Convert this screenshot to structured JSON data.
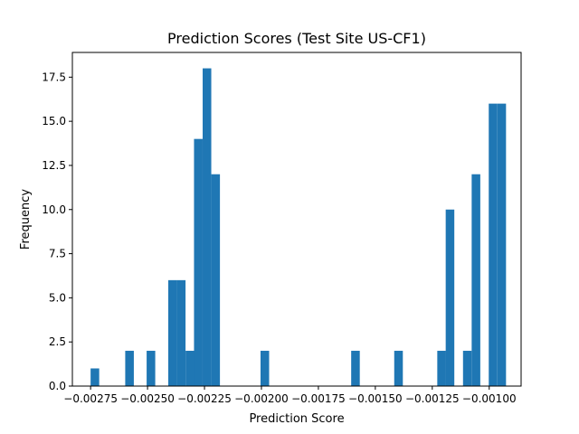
{
  "chart_data": {
    "type": "bar",
    "title": "Prediction Scores (Test Site US-CF1)",
    "xlabel": "Prediction Score",
    "ylabel": "Frequency",
    "xlim": [
      -0.00283,
      -0.00086
    ],
    "ylim": [
      0,
      18.9
    ],
    "bar_color": "#1f77b4",
    "bin_width": 3.78e-05,
    "x_ticks": [
      -0.00275,
      -0.0025,
      -0.00225,
      -0.002,
      -0.00175,
      -0.0015,
      -0.00125,
      -0.001
    ],
    "x_tick_labels": [
      "−0.00275",
      "−0.00250",
      "−0.00225",
      "−0.00200",
      "−0.00175",
      "−0.00150",
      "−0.00125",
      "−0.00100"
    ],
    "y_ticks": [
      0,
      2.5,
      5,
      7.5,
      10,
      12.5,
      15,
      17.5
    ],
    "y_tick_labels": [
      "0.0",
      "2.5",
      "5.0",
      "7.5",
      "10.0",
      "12.5",
      "15.0",
      "17.5"
    ],
    "bins": [
      {
        "x": -0.00275,
        "count": 1
      },
      {
        "x": -0.002598,
        "count": 2
      },
      {
        "x": -0.002504,
        "count": 2
      },
      {
        "x": -0.002409,
        "count": 6
      },
      {
        "x": -0.002371,
        "count": 6
      },
      {
        "x": -0.002333,
        "count": 2
      },
      {
        "x": -0.002296,
        "count": 14
      },
      {
        "x": -0.002258,
        "count": 18
      },
      {
        "x": -0.00222,
        "count": 12
      },
      {
        "x": -0.002004,
        "count": 2
      },
      {
        "x": -0.001606,
        "count": 2
      },
      {
        "x": -0.001417,
        "count": 2
      },
      {
        "x": -0.001228,
        "count": 2
      },
      {
        "x": -0.001191,
        "count": 10
      },
      {
        "x": -0.001115,
        "count": 2
      },
      {
        "x": -0.001077,
        "count": 12
      },
      {
        "x": -0.001002,
        "count": 16
      },
      {
        "x": -0.000964,
        "count": 16
      }
    ]
  }
}
